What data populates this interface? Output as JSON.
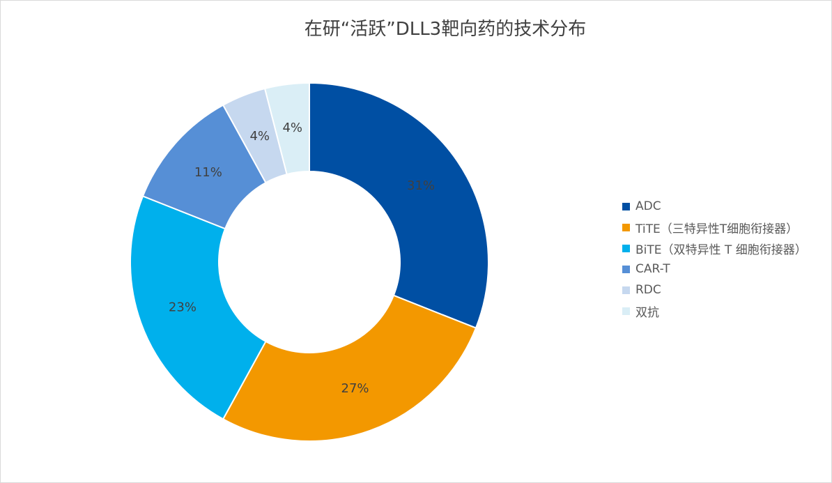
{
  "chart_data": {
    "type": "pie",
    "donut": true,
    "title": "在研“活跃”DLL3靶向药的技术分布",
    "legend_position": "right",
    "slices": [
      {
        "name": "ADC",
        "value": 31,
        "label": "31%",
        "color": "#004fa3"
      },
      {
        "name": "TiTE（三特异性T细胞衔接器）",
        "value": 27,
        "label": "27%",
        "color": "#f39800"
      },
      {
        "name": "BiTE（双特异性 T 细胞衔接器）",
        "value": 23,
        "label": "23%",
        "color": "#00b0ec"
      },
      {
        "name": "CAR-T",
        "value": 11,
        "label": "11%",
        "color": "#568fd6"
      },
      {
        "name": "RDC",
        "value": 4,
        "label": "4%",
        "color": "#c6d8ef"
      },
      {
        "name": "双抗",
        "value": 4,
        "label": "4%",
        "color": "#daeef6"
      }
    ]
  }
}
